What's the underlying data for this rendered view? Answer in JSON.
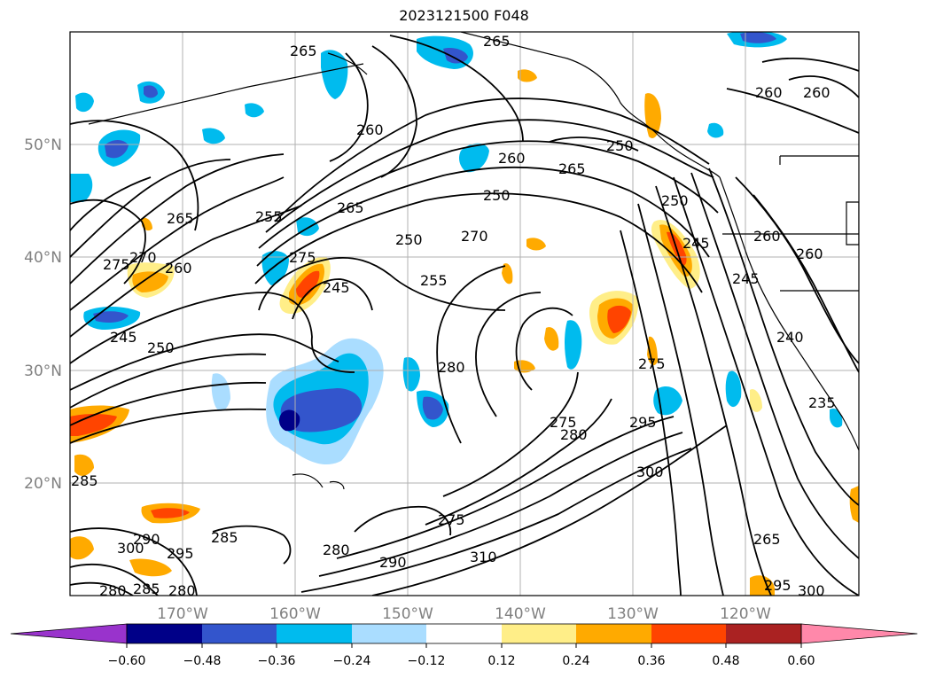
{
  "title": "2023121500 F048",
  "map": {
    "lon_ticks": [
      "170°W",
      "160°W",
      "150°W",
      "140°W",
      "130°W",
      "120°W"
    ],
    "lat_ticks": [
      "50°N",
      "40°N",
      "30°N",
      "20°N"
    ],
    "grid": true,
    "coastlines": true
  },
  "colorbar": {
    "ticks": [
      "−0.60",
      "−0.48",
      "−0.36",
      "−0.24",
      "−0.12",
      "0.12",
      "0.24",
      "0.36",
      "0.48",
      "0.60"
    ],
    "colors": [
      "#9933cc",
      "#000088",
      "#3355cc",
      "#00bbee",
      "#aaddff",
      "#ffffff",
      "#ffee88",
      "#ffaa00",
      "#ff4400",
      "#aa2222",
      "#ff88aa"
    ],
    "extend": "both"
  },
  "contour_labels": [
    "265",
    "265",
    "260",
    "260",
    "260",
    "260",
    "250",
    "265",
    "250",
    "265",
    "255",
    "250",
    "270",
    "255",
    "275",
    "265",
    "270",
    "275",
    "260",
    "245",
    "250",
    "245",
    "280",
    "275",
    "275",
    "280",
    "295",
    "300",
    "285",
    "285",
    "290",
    "300",
    "295",
    "275",
    "280",
    "290",
    "310",
    "265",
    "295",
    "300",
    "280",
    "285",
    "280",
    "250",
    "245",
    "245",
    "260",
    "260",
    "240",
    "235"
  ]
}
